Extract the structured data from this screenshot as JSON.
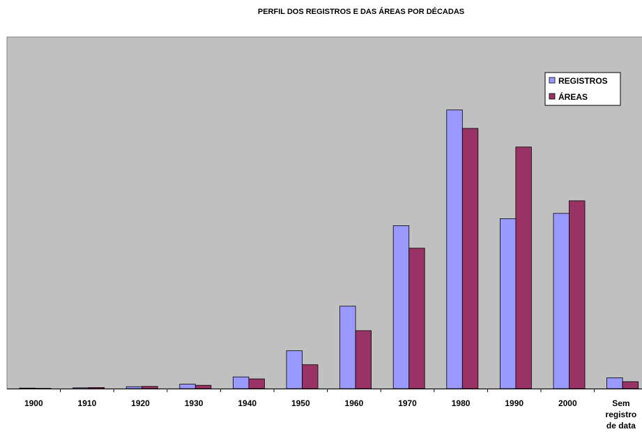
{
  "chart_data": {
    "type": "bar",
    "title": "PERFIL DOS REGISTROS E DAS ÁREAS POR DÉCADAS",
    "xlabel": "",
    "ylabel": "",
    "categories": [
      "1900",
      "1910",
      "1920",
      "1930",
      "1940",
      "1950",
      "1960",
      "1970",
      "1980",
      "1990",
      "2000",
      "Sem registro de data"
    ],
    "series": [
      {
        "name": "REGISTROS",
        "color": "#9999ff",
        "values": [
          0.2,
          0.3,
          0.7,
          1.6,
          4.2,
          13.6,
          29.6,
          58.5,
          100,
          61.0,
          62.9,
          3.9
        ]
      },
      {
        "name": "ÁREAS",
        "color": "#993366",
        "values": [
          0.1,
          0.4,
          0.8,
          1.2,
          3.5,
          8.6,
          20.8,
          50.4,
          93.4,
          86.7,
          67.4,
          2.5
        ]
      }
    ],
    "ylim": [
      0,
      126.2
    ],
    "y_unit": "relative (no scale printed)",
    "grid": false,
    "legend_position": "top-right",
    "plot_background": "#c0c0c0"
  }
}
